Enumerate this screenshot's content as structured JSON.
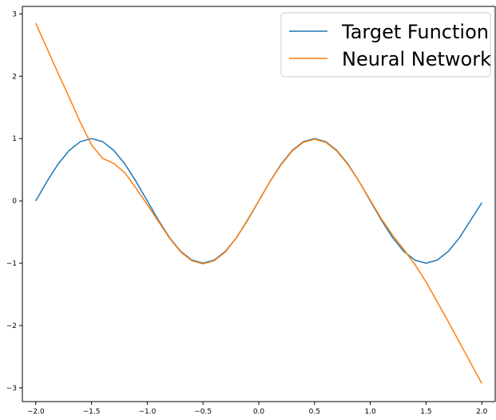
{
  "chart_data": {
    "type": "line",
    "title": "",
    "xlabel": "",
    "ylabel": "",
    "xlim": [
      -2.12,
      2.12
    ],
    "ylim": [
      -3.22,
      3.12
    ],
    "grid": false,
    "legend_position": "top-right",
    "xticks": [
      -2.0,
      -1.5,
      -1.0,
      -0.5,
      0.0,
      0.5,
      1.0,
      1.5,
      2.0
    ],
    "xtick_labels": [
      "−2.0",
      "−1.5",
      "−1.0",
      "−0.5",
      "0.0",
      "0.5",
      "1.0",
      "1.5",
      "2.0"
    ],
    "yticks": [
      3,
      2,
      1,
      0,
      -1,
      -2,
      -3
    ],
    "ytick_labels": [
      "3",
      "2",
      "1",
      "0",
      "−1",
      "−2",
      "−3"
    ],
    "series": [
      {
        "name": "Target Function",
        "color": "#1f77b4",
        "x": [
          -2.0,
          -1.9,
          -1.8,
          -1.7,
          -1.6,
          -1.5,
          -1.4,
          -1.3,
          -1.2,
          -1.1,
          -1.0,
          -0.9,
          -0.8,
          -0.7,
          -0.6,
          -0.5,
          -0.4,
          -0.3,
          -0.2,
          -0.1,
          0.0,
          0.1,
          0.2,
          0.3,
          0.4,
          0.5,
          0.6,
          0.7,
          0.8,
          0.9,
          1.0,
          1.1,
          1.2,
          1.3,
          1.4,
          1.5,
          1.6,
          1.7,
          1.8,
          1.9,
          2.0
        ],
        "y": [
          0.0,
          0.31,
          0.59,
          0.81,
          0.95,
          1.0,
          0.95,
          0.81,
          0.59,
          0.31,
          0.0,
          -0.31,
          -0.59,
          -0.81,
          -0.95,
          -1.0,
          -0.95,
          -0.81,
          -0.59,
          -0.31,
          0.0,
          0.31,
          0.59,
          0.81,
          0.95,
          1.0,
          0.95,
          0.81,
          0.59,
          0.31,
          0.0,
          -0.31,
          -0.59,
          -0.81,
          -0.95,
          -1.0,
          -0.95,
          -0.81,
          -0.59,
          -0.31,
          -0.03
        ]
      },
      {
        "name": "Neural Network",
        "color": "#ff7f0e",
        "x": [
          -2.0,
          -1.9,
          -1.8,
          -1.7,
          -1.6,
          -1.5,
          -1.4,
          -1.3,
          -1.2,
          -1.1,
          -1.0,
          -0.9,
          -0.8,
          -0.7,
          -0.6,
          -0.5,
          -0.4,
          -0.3,
          -0.2,
          -0.1,
          0.0,
          0.1,
          0.2,
          0.3,
          0.4,
          0.5,
          0.6,
          0.7,
          0.8,
          0.9,
          1.0,
          1.1,
          1.2,
          1.3,
          1.4,
          1.5,
          1.6,
          1.7,
          1.8,
          1.9,
          2.0
        ],
        "y": [
          2.85,
          2.45,
          2.05,
          1.66,
          1.26,
          0.9,
          0.68,
          0.6,
          0.45,
          0.2,
          -0.06,
          -0.33,
          -0.6,
          -0.82,
          -0.96,
          -1.01,
          -0.96,
          -0.82,
          -0.59,
          -0.3,
          0.0,
          0.31,
          0.58,
          0.8,
          0.94,
          0.99,
          0.94,
          0.8,
          0.58,
          0.31,
          0.01,
          -0.29,
          -0.55,
          -0.78,
          -1.02,
          -1.3,
          -1.62,
          -1.94,
          -2.27,
          -2.6,
          -2.93
        ]
      }
    ]
  }
}
